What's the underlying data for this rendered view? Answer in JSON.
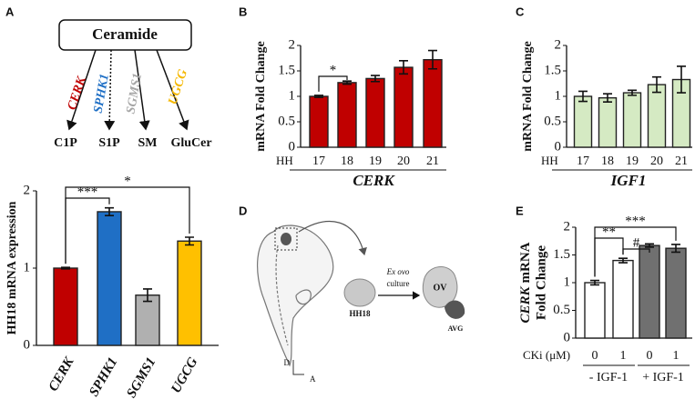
{
  "panel_labels": [
    "A",
    "B",
    "C",
    "D",
    "E"
  ],
  "diagram_a": {
    "root": "Ceramide",
    "branches": [
      {
        "enzyme": "CERK",
        "product": "C1P",
        "color": "#c00000"
      },
      {
        "enzyme": "SPHK1",
        "product": "S1P",
        "color": "#1f6fc5"
      },
      {
        "enzyme": "SGMS1",
        "product": "SM",
        "color": "#a6a6a6"
      },
      {
        "enzyme": "UGCG",
        "product": "GluCer",
        "color": "#f5b800"
      }
    ]
  },
  "diagram_d": {
    "method": "Ex ovo",
    "method2": "culture",
    "stage": "HH18",
    "tissue": "OV",
    "tissue2": "AVG",
    "axis_d": "D",
    "axis_a": "A"
  },
  "chart_data": [
    {
      "type": "bar",
      "ylabel": "HH18 mRNA expression",
      "categories": [
        "CERK",
        "SPHK1",
        "SGMS1",
        "UGCG"
      ],
      "values": [
        1,
        1.73,
        0.65,
        1.35
      ],
      "errors": [
        0.01,
        0.05,
        0.08,
        0.05
      ],
      "colors": [
        "#c00000",
        "#1f6fc5",
        "#b0b0b0",
        "#ffc000"
      ],
      "ylim": [
        0,
        2
      ],
      "yticks": [
        0,
        1,
        2
      ],
      "annotations": [
        "***",
        "*"
      ]
    },
    {
      "type": "bar",
      "ylabel": "mRNA Fold Change",
      "xprefix": "HH",
      "xlabel": "CERK",
      "categories": [
        "17",
        "18",
        "19",
        "20",
        "21"
      ],
      "values": [
        1,
        1.27,
        1.35,
        1.57,
        1.72
      ],
      "errors": [
        0.02,
        0.03,
        0.06,
        0.13,
        0.18
      ],
      "color": "#c00000",
      "ylim": [
        0,
        2
      ],
      "yticks": [
        0,
        0.5,
        1,
        1.5,
        2
      ],
      "annotations": [
        "*"
      ]
    },
    {
      "type": "bar",
      "ylabel": "mRNA Fold Change",
      "xprefix": "HH",
      "xlabel": "IGF1",
      "categories": [
        "17",
        "18",
        "19",
        "20",
        "21"
      ],
      "values": [
        1,
        0.97,
        1.07,
        1.23,
        1.33
      ],
      "errors": [
        0.1,
        0.08,
        0.05,
        0.15,
        0.26
      ],
      "color": "#d5eac3",
      "ylim": [
        0,
        2
      ],
      "yticks": [
        0,
        0.5,
        1,
        1.5,
        2
      ],
      "annotations": []
    },
    {
      "type": "bar",
      "ylabel": [
        "CERK",
        "mRNA",
        "Fold Change"
      ],
      "xprefix": "CKi (μM)",
      "groups": [
        "- IGF-1",
        "+ IGF-1"
      ],
      "categories": [
        "0",
        "1",
        "0",
        "1"
      ],
      "values": [
        1,
        1.4,
        1.67,
        1.62
      ],
      "errors": [
        0.04,
        0.04,
        0.03,
        0.07
      ],
      "colors": [
        "#ffffff",
        "#ffffff",
        "#707070",
        "#707070"
      ],
      "ylim": [
        0,
        2
      ],
      "yticks": [
        0,
        0.5,
        1,
        1.5,
        2
      ],
      "annotations": [
        "***",
        "**",
        "#"
      ]
    }
  ]
}
